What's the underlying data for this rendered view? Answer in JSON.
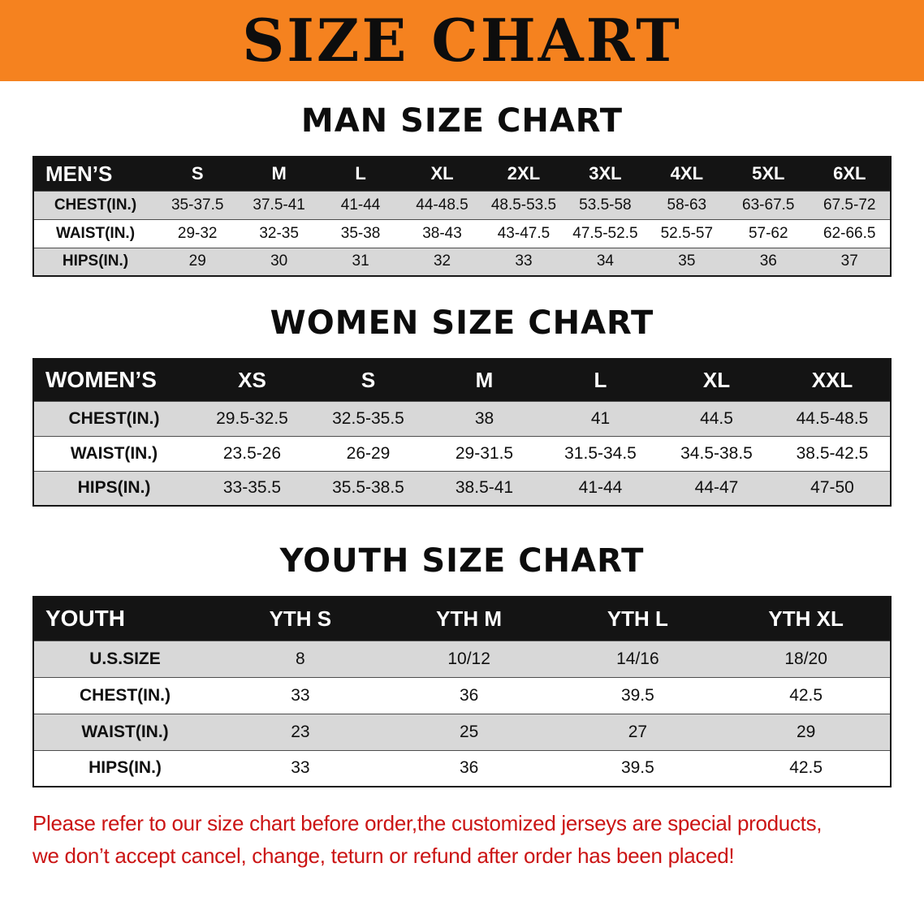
{
  "banner": {
    "title": "SIZE CHART"
  },
  "sections": [
    {
      "heading": "MAN SIZE CHART",
      "table": {
        "label_header": "MEN’S",
        "size_headers": [
          "S",
          "M",
          "L",
          "XL",
          "2XL",
          "3XL",
          "4XL",
          "5XL",
          "6XL"
        ],
        "rows": [
          {
            "label": "CHEST(IN.)",
            "values": [
              "35-37.5",
              "37.5-41",
              "41-44",
              "44-48.5",
              "48.5-53.5",
              "53.5-58",
              "58-63",
              "63-67.5",
              "67.5-72"
            ]
          },
          {
            "label": "WAIST(IN.)",
            "values": [
              "29-32",
              "32-35",
              "35-38",
              "38-43",
              "43-47.5",
              "47.5-52.5",
              "52.5-57",
              "57-62",
              "62-66.5"
            ]
          },
          {
            "label": "HIPS(IN.)",
            "values": [
              "29",
              "30",
              "31",
              "32",
              "33",
              "34",
              "35",
              "36",
              "37"
            ]
          }
        ]
      }
    },
    {
      "heading": "WOMEN SIZE CHART",
      "table": {
        "label_header": "WOMEN’S",
        "size_headers": [
          "XS",
          "S",
          "M",
          "L",
          "XL",
          "XXL"
        ],
        "rows": [
          {
            "label": "CHEST(IN.)",
            "values": [
              "29.5-32.5",
              "32.5-35.5",
              "38",
              "41",
              "44.5",
              "44.5-48.5"
            ]
          },
          {
            "label": "WAIST(IN.)",
            "values": [
              "23.5-26",
              "26-29",
              "29-31.5",
              "31.5-34.5",
              "34.5-38.5",
              "38.5-42.5"
            ]
          },
          {
            "label": "HIPS(IN.)",
            "values": [
              "33-35.5",
              "35.5-38.5",
              "38.5-41",
              "41-44",
              "44-47",
              "47-50"
            ]
          }
        ]
      }
    },
    {
      "heading": "YOUTH SIZE CHART",
      "table": {
        "label_header": "YOUTH",
        "size_headers": [
          "YTH S",
          "YTH M",
          "YTH L",
          "YTH XL"
        ],
        "rows": [
          {
            "label": "U.S.SIZE",
            "values": [
              "8",
              "10/12",
              "14/16",
              "18/20"
            ]
          },
          {
            "label": "CHEST(IN.)",
            "values": [
              "33",
              "36",
              "39.5",
              "42.5"
            ]
          },
          {
            "label": "WAIST(IN.)",
            "values": [
              "23",
              "25",
              "27",
              "29"
            ]
          },
          {
            "label": "HIPS(IN.)",
            "values": [
              "33",
              "36",
              "39.5",
              "42.5"
            ]
          }
        ]
      }
    }
  ],
  "footer": {
    "line1": "Please refer to our size chart before order,the customized jerseys are special products,",
    "line2": "we don’t accept cancel, change, teturn or refund after order has been placed!"
  },
  "colors": {
    "banner_bg": "#f5821f",
    "header_bg": "#141414",
    "row_alt_bg": "#d8d8d8",
    "footer_text": "#cb1414"
  }
}
